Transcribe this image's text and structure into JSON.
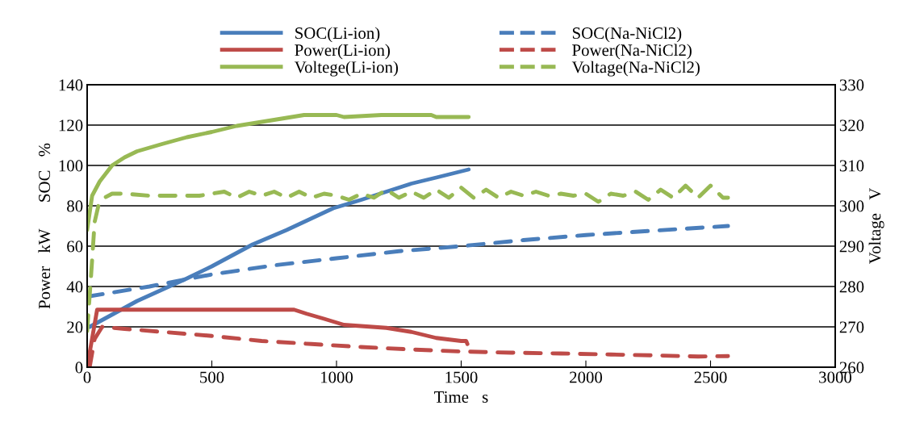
{
  "chart_data": {
    "type": "line",
    "xlabel": "Time　s",
    "ylabel": "Power　kW　　SOC　%",
    "y2label": "Voltage　V",
    "xlim": [
      0,
      3000
    ],
    "xticks": [
      0,
      500,
      1000,
      1500,
      2000,
      2500,
      3000
    ],
    "ylim": [
      0,
      140
    ],
    "yticks": [
      0,
      20,
      40,
      60,
      80,
      100,
      120,
      140
    ],
    "y2lim": [
      260,
      330
    ],
    "y2ticks": [
      260,
      270,
      280,
      290,
      300,
      310,
      320,
      330
    ],
    "grid": "y",
    "legend": "top",
    "marker": "none",
    "series": [
      {
        "name": "SOC(Li-ion)",
        "color": "#4a7ebb",
        "line_style": "solid",
        "x": [
          10,
          200,
          400,
          500,
          663,
          800,
          987,
          1100,
          1200,
          1300,
          1400,
          1530
        ],
        "values": [
          20,
          32.8,
          44,
          50,
          60.8,
          68,
          78.8,
          83,
          87,
          91,
          94,
          98
        ]
      },
      {
        "name": "SOC(Na-NiCl2)",
        "color": "#4a7ebb",
        "line_style": "dashed",
        "x": [
          0,
          250,
          500,
          750,
          1000,
          1250,
          1500,
          1750,
          2000,
          2250,
          2570
        ],
        "values": [
          35,
          40,
          46,
          50.5,
          54,
          57.5,
          60,
          63,
          65.5,
          67.5,
          70
        ]
      },
      {
        "name": "Power(Li-ion)",
        "color": "#be4b48",
        "line_style": "solid",
        "x": [
          0,
          40,
          830,
          880,
          950,
          1030,
          1200,
          1300,
          1400,
          1500,
          1520,
          1525
        ],
        "values": [
          0,
          28.5,
          28.5,
          26.5,
          24,
          21,
          19.5,
          17.5,
          14.5,
          13,
          13,
          11.5
        ]
      },
      {
        "name": "Power(Na-NiCl2)",
        "color": "#be4b48",
        "line_style": "dashed",
        "x": [
          10,
          30,
          60,
          150,
          300,
          500,
          700,
          900,
          1100,
          1300,
          1500,
          1700,
          1900,
          2100,
          2300,
          2450,
          2570
        ],
        "values": [
          0,
          14,
          20,
          19,
          17.5,
          15.5,
          13,
          11.5,
          10,
          8.8,
          7.8,
          7.2,
          6.8,
          6.3,
          5.8,
          5.3,
          5.5
        ]
      },
      {
        "name": "Voltege(Li-ion)",
        "color": "#98b954",
        "line_style": "solid",
        "axis": "y2",
        "x": [
          0,
          20,
          50,
          100,
          150,
          200,
          300,
          400,
          500,
          600,
          700,
          800,
          870,
          1000,
          1030,
          1180,
          1380,
          1400,
          1530
        ],
        "values": [
          294,
          302.5,
          306,
          310,
          312,
          313.5,
          315.3,
          317,
          318.3,
          319.8,
          320.8,
          321.8,
          322.5,
          322.5,
          322,
          322.5,
          322.5,
          322,
          322
        ]
      },
      {
        "name": "Voltage(Na-NiCl2)",
        "color": "#98b954",
        "line_style": "dashed",
        "axis": "y2",
        "x": [
          0,
          15,
          30,
          45,
          70,
          100,
          150,
          250,
          350,
          450,
          550,
          600,
          650,
          700,
          750,
          800,
          850,
          900,
          950,
          1000,
          1050,
          1100,
          1150,
          1200,
          1250,
          1300,
          1350,
          1400,
          1450,
          1500,
          1550,
          1600,
          1650,
          1700,
          1750,
          1800,
          1850,
          1900,
          1950,
          2000,
          2050,
          2100,
          2150,
          2200,
          2250,
          2300,
          2350,
          2400,
          2450,
          2500,
          2550,
          2570
        ],
        "values": [
          269,
          282,
          296,
          300,
          302,
          303,
          303,
          302.5,
          302.5,
          302.5,
          303.5,
          302,
          303.5,
          302.5,
          303.5,
          302,
          303.5,
          302,
          303,
          302.5,
          301.5,
          303,
          302,
          304,
          302,
          303.5,
          302,
          304,
          302,
          304.5,
          302,
          304,
          302,
          303.5,
          302.5,
          303.5,
          302.5,
          303,
          302.5,
          303,
          301,
          303,
          302.5,
          303.5,
          301.5,
          304,
          302,
          305,
          302,
          305,
          302,
          302
        ]
      }
    ]
  }
}
